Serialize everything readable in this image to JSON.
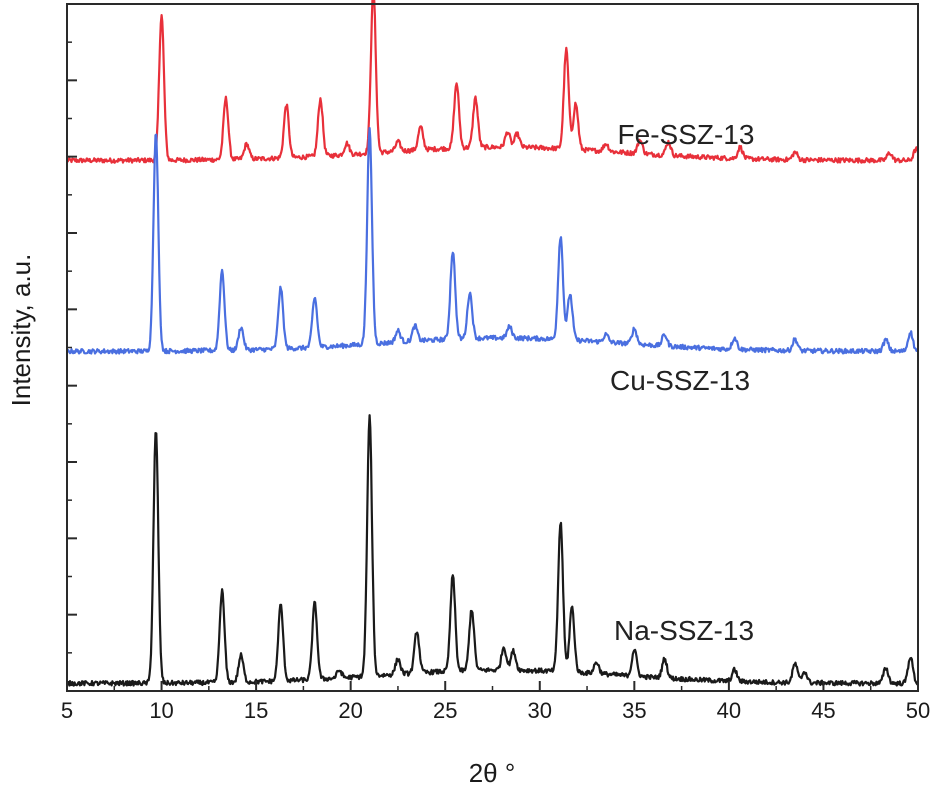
{
  "chart_data": {
    "type": "line",
    "xlabel": "2θ °",
    "ylabel": "Intensity, a.u.",
    "xlim": [
      5,
      50
    ],
    "ylim": [
      0,
      18
    ],
    "x_ticks": [
      "5",
      "10",
      "15",
      "20",
      "25",
      "30",
      "35",
      "40",
      "45",
      "50"
    ],
    "grid": false,
    "series": [
      {
        "name": "Fe-SSZ-13",
        "color": "#e8303a",
        "baseline": 13.9,
        "peaks": [
          [
            10.0,
            3.8
          ],
          [
            13.4,
            1.6
          ],
          [
            14.5,
            0.4
          ],
          [
            16.6,
            1.4
          ],
          [
            18.4,
            1.5
          ],
          [
            19.8,
            0.3
          ],
          [
            21.2,
            4.3
          ],
          [
            22.5,
            0.25
          ],
          [
            23.7,
            0.6
          ],
          [
            25.6,
            1.7
          ],
          [
            26.6,
            1.3
          ],
          [
            28.3,
            0.4
          ],
          [
            28.8,
            0.35
          ],
          [
            31.4,
            2.6
          ],
          [
            31.9,
            1.2
          ],
          [
            33.5,
            0.2
          ],
          [
            35.3,
            0.35
          ],
          [
            36.8,
            0.35
          ],
          [
            40.6,
            0.3
          ],
          [
            43.5,
            0.2
          ],
          [
            48.5,
            0.2
          ],
          [
            49.9,
            0.3
          ]
        ]
      },
      {
        "name": "Cu-SSZ-13",
        "color": "#4a6fe0",
        "baseline": 8.9,
        "peaks": [
          [
            9.7,
            5.7
          ],
          [
            13.2,
            2.1
          ],
          [
            14.2,
            0.6
          ],
          [
            16.3,
            1.6
          ],
          [
            18.1,
            1.3
          ],
          [
            21.0,
            5.6
          ],
          [
            22.5,
            0.3
          ],
          [
            23.4,
            0.4
          ],
          [
            25.4,
            2.3
          ],
          [
            26.3,
            1.2
          ],
          [
            28.4,
            0.3
          ],
          [
            31.1,
            2.7
          ],
          [
            31.6,
            1.2
          ],
          [
            33.5,
            0.2
          ],
          [
            35.0,
            0.4
          ],
          [
            36.6,
            0.3
          ],
          [
            40.3,
            0.3
          ],
          [
            43.5,
            0.3
          ],
          [
            48.3,
            0.3
          ],
          [
            49.6,
            0.5
          ]
        ]
      },
      {
        "name": "Na-SSZ-13",
        "color": "#1a1a1a",
        "baseline": 0.2,
        "peaks": [
          [
            9.7,
            6.6
          ],
          [
            13.2,
            2.4
          ],
          [
            14.2,
            0.7
          ],
          [
            16.3,
            2.0
          ],
          [
            18.1,
            2.0
          ],
          [
            19.4,
            0.2
          ],
          [
            21.0,
            6.8
          ],
          [
            22.5,
            0.4
          ],
          [
            23.5,
            1.1
          ],
          [
            25.4,
            2.5
          ],
          [
            26.4,
            1.6
          ],
          [
            28.1,
            0.6
          ],
          [
            28.6,
            0.5
          ],
          [
            31.1,
            3.9
          ],
          [
            31.7,
            1.7
          ],
          [
            33.0,
            0.3
          ],
          [
            35.0,
            0.7
          ],
          [
            36.6,
            0.5
          ],
          [
            40.3,
            0.3
          ],
          [
            43.5,
            0.5
          ],
          [
            44.0,
            0.3
          ],
          [
            48.3,
            0.4
          ],
          [
            49.6,
            0.7
          ]
        ]
      }
    ]
  }
}
